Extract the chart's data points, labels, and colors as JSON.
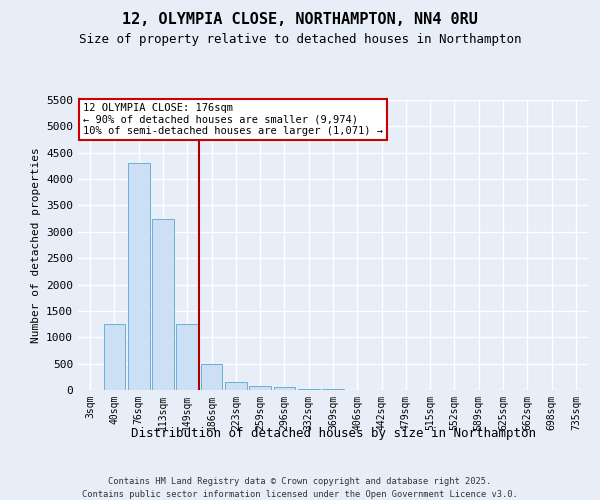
{
  "title": "12, OLYMPIA CLOSE, NORTHAMPTON, NN4 0RU",
  "subtitle": "Size of property relative to detached houses in Northampton",
  "xlabel": "Distribution of detached houses by size in Northampton",
  "ylabel": "Number of detached properties",
  "categories": [
    "3sqm",
    "40sqm",
    "76sqm",
    "113sqm",
    "149sqm",
    "186sqm",
    "223sqm",
    "259sqm",
    "296sqm",
    "332sqm",
    "369sqm",
    "406sqm",
    "442sqm",
    "479sqm",
    "515sqm",
    "552sqm",
    "589sqm",
    "625sqm",
    "662sqm",
    "698sqm",
    "735sqm"
  ],
  "values": [
    0,
    1250,
    4300,
    3250,
    1250,
    500,
    150,
    75,
    50,
    25,
    10,
    5,
    2,
    1,
    0,
    0,
    0,
    0,
    0,
    0,
    0
  ],
  "bar_color": "#cce0f5",
  "bar_edge_color": "#6baed6",
  "vline_color": "#aa0000",
  "vline_x": 4.5,
  "annotation_text": "12 OLYMPIA CLOSE: 176sqm\n← 90% of detached houses are smaller (9,974)\n10% of semi-detached houses are larger (1,071) →",
  "annotation_box_facecolor": "#ffffff",
  "annotation_box_edgecolor": "#cc0000",
  "ylim": [
    0,
    5500
  ],
  "yticks": [
    0,
    500,
    1000,
    1500,
    2000,
    2500,
    3000,
    3500,
    4000,
    4500,
    5000,
    5500
  ],
  "background_color": "#e8eef8",
  "grid_color": "#ffffff",
  "title_fontsize": 11,
  "subtitle_fontsize": 9,
  "ylabel_fontsize": 8,
  "xlabel_fontsize": 9,
  "tick_fontsize": 8,
  "xtick_fontsize": 7,
  "footer_line1": "Contains HM Land Registry data © Crown copyright and database right 2025.",
  "footer_line2": "Contains public sector information licensed under the Open Government Licence v3.0."
}
